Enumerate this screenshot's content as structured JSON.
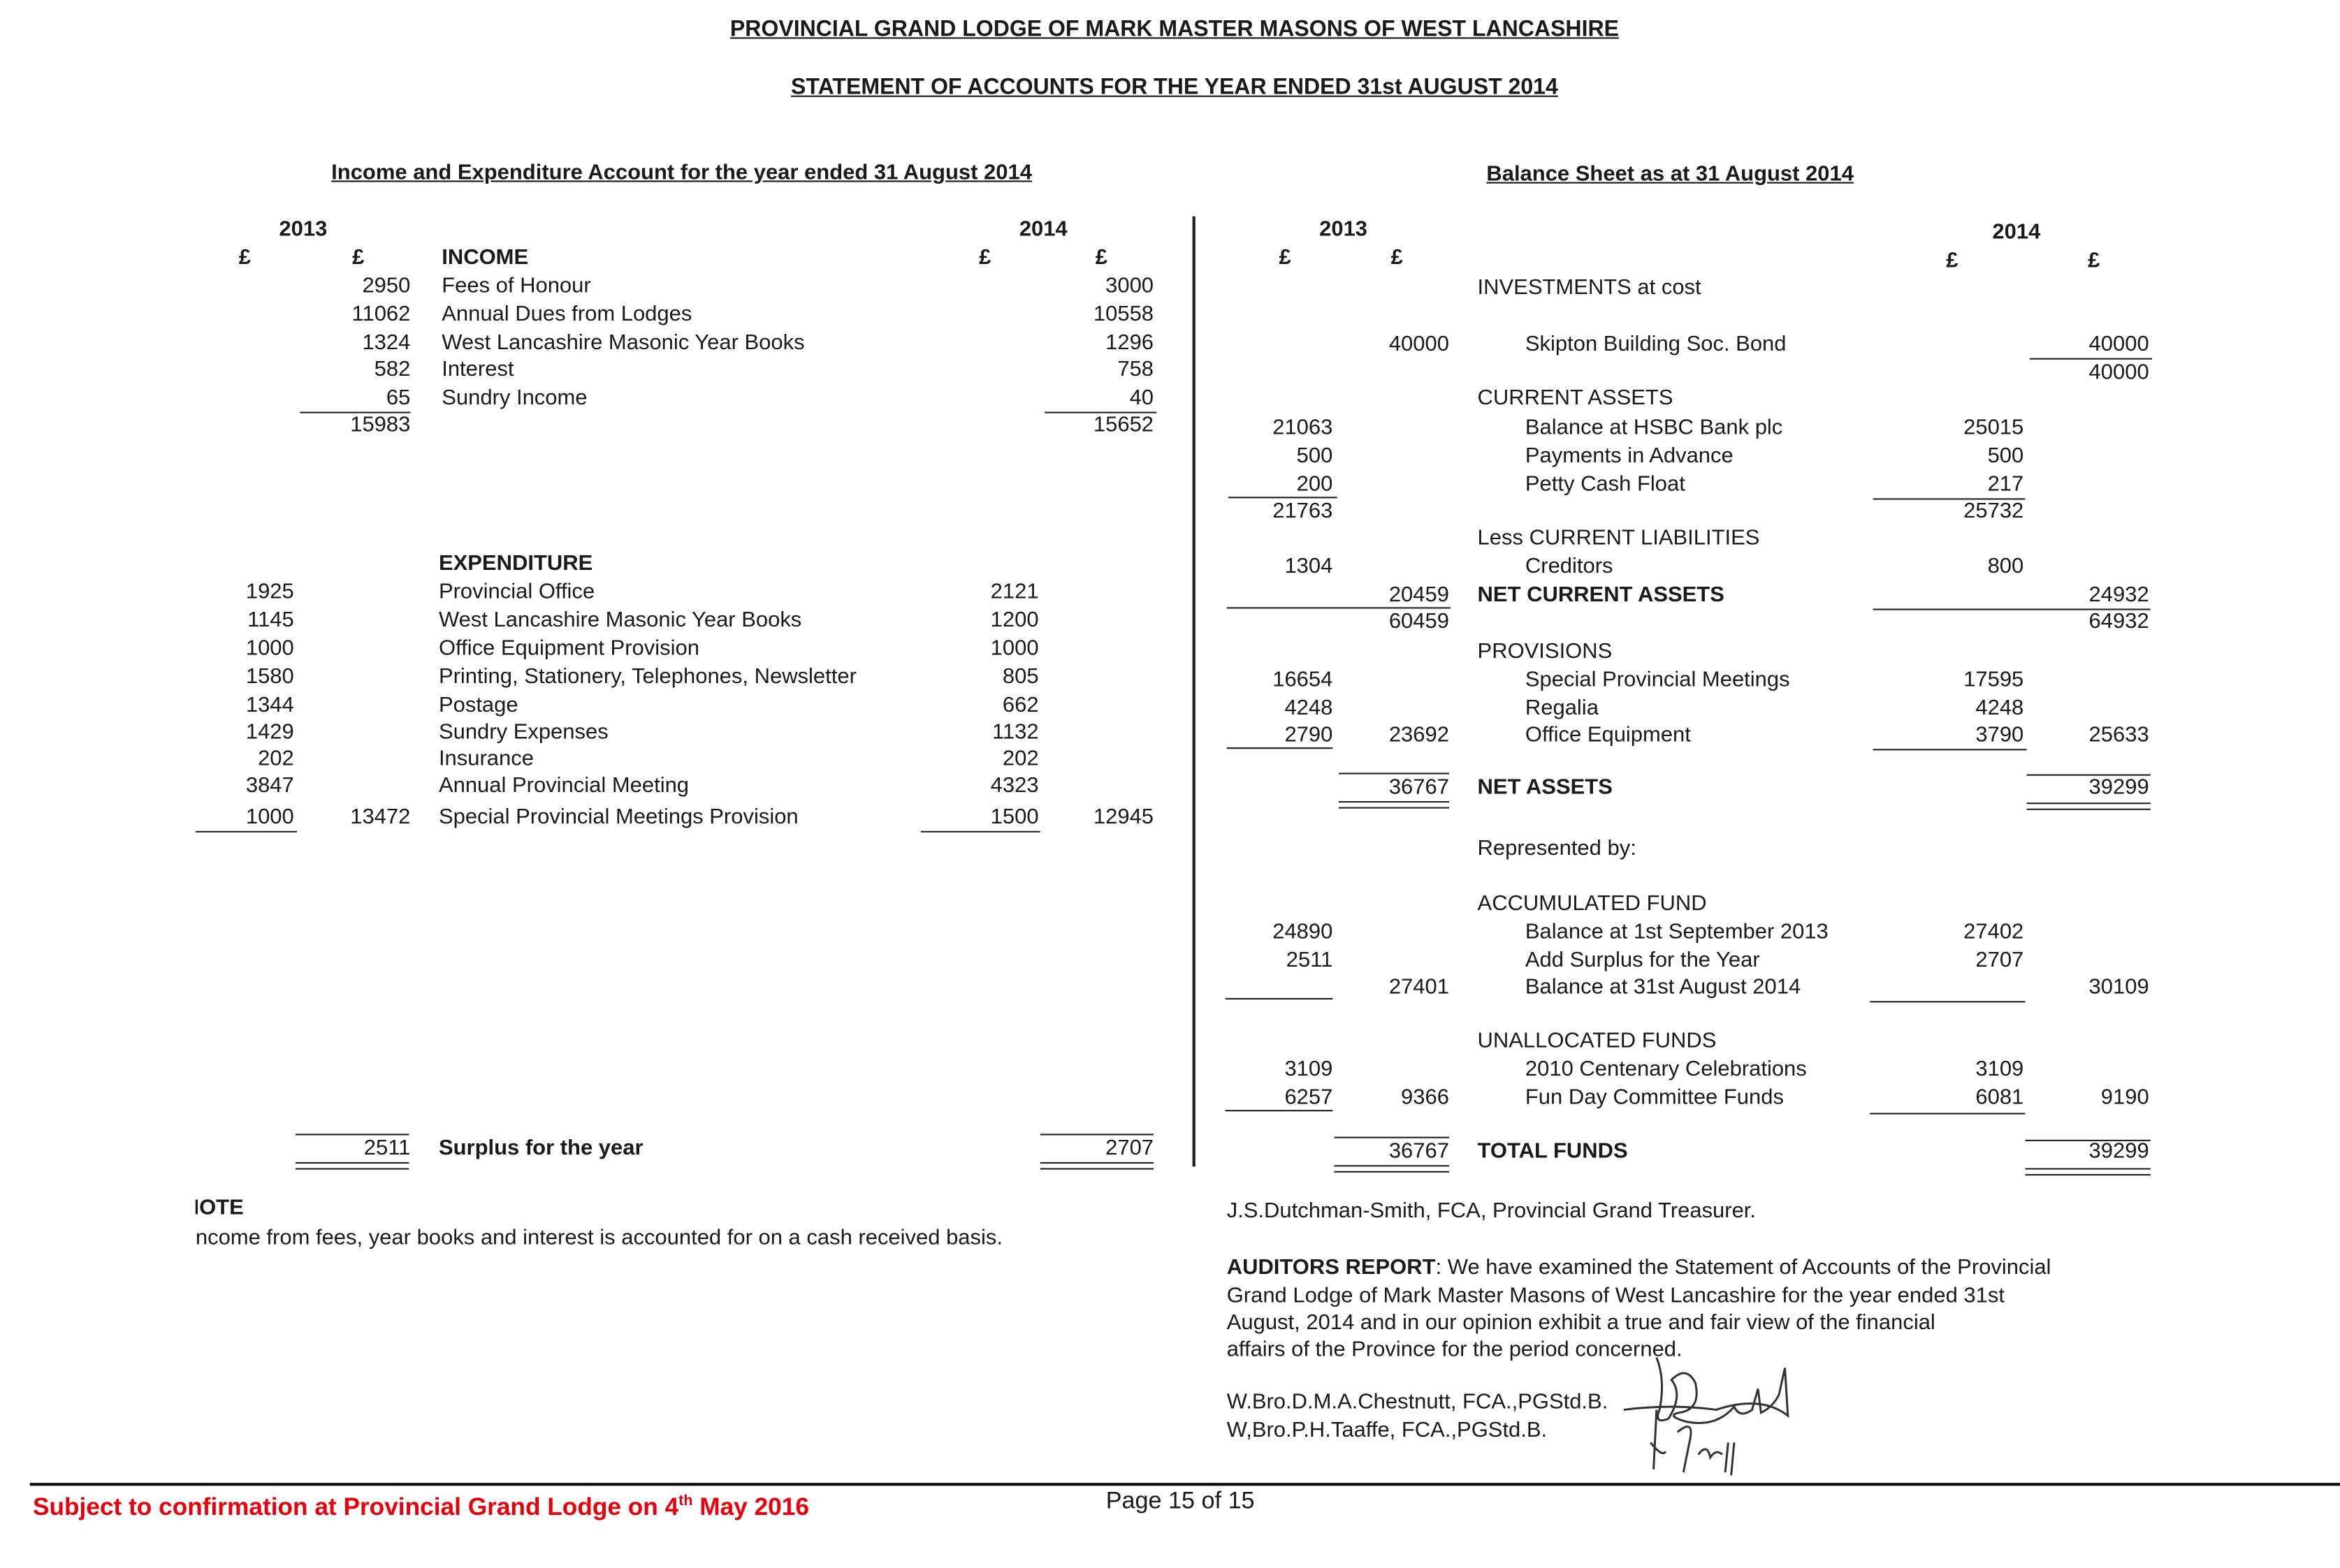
{
  "header": {
    "title": "PROVINCIAL GRAND LODGE OF MARK MASTER MASONS OF WEST LANCASHIRE",
    "subtitle": "STATEMENT OF ACCOUNTS FOR THE YEAR ENDED 31st AUGUST 2014"
  },
  "income_expenditure": {
    "title": "Income and Expenditure Account for the year ended 31 August 2014",
    "year_prev": "2013",
    "year_curr": "2014",
    "currency": "£",
    "income_heading": "INCOME",
    "rows": [
      {
        "label": "Fees of Honour",
        "b": "2950",
        "d": "3000"
      },
      {
        "label": "Annual Dues from Lodges",
        "b": "11062",
        "d": "10558"
      },
      {
        "label": "West Lancashire Masonic Year Books",
        "b": "1324",
        "d": "1296"
      },
      {
        "label": "Interest",
        "b": "582",
        "d": "758"
      },
      {
        "label": "Sundry Income",
        "b": "65",
        "d": "40"
      },
      {
        "b": "15983",
        "d": "15652"
      },
      {
        "label": "EXPENDITURE"
      },
      {
        "label": "Provincial Office",
        "a": "1925",
        "c": "2121"
      },
      {
        "label": "West Lancashire Masonic Year Books",
        "a": "1145",
        "c": "1200"
      },
      {
        "label": "Office Equipment Provision",
        "a": "1000",
        "c": "1000"
      },
      {
        "label": "Printing,  Stationery, Telephones, Newsletter",
        "a": "1580",
        "c": "805"
      },
      {
        "label": "Postage",
        "a": "1344",
        "c": "662"
      },
      {
        "label": "Sundry Expenses",
        "a": "1429",
        "c": "1132"
      },
      {
        "label": "Insurance",
        "a": "202",
        "c": "202"
      },
      {
        "label": "Annual Provincial Meeting",
        "a": "3847",
        "c": "4323"
      },
      {
        "label": "Special Provincial Meetings Provision",
        "a": "1000",
        "b": "13472",
        "c": "1500",
        "d": "12945"
      },
      {
        "label": "Surplus for the year",
        "b": "2511",
        "d": "2707"
      }
    ]
  },
  "balance_sheet": {
    "title": "Balance Sheet as at 31 August 2014",
    "year_prev": "2013",
    "year_curr": "2014",
    "currency": "£",
    "rows": [
      {
        "label": "INVESTMENTS at cost"
      },
      {
        "label": "Skipton Building Soc. Bond",
        "b": "40000",
        "d": "40000"
      },
      {
        "d": "40000"
      },
      {
        "label": "CURRENT ASSETS"
      },
      {
        "label": "Balance at HSBC Bank plc",
        "a": "21063",
        "c": "25015"
      },
      {
        "label": "Payments in Advance",
        "a": "500",
        "c": "500"
      },
      {
        "label": "Petty Cash Float",
        "a": "200",
        "c": "217"
      },
      {
        "a": "21763",
        "c": "25732"
      },
      {
        "label": "Less CURRENT LIABILITIES"
      },
      {
        "label": "Creditors",
        "a": "1304",
        "c": "800"
      },
      {
        "label": "NET CURRENT ASSETS",
        "b": "20459",
        "d": "24932"
      },
      {
        "b": "60459",
        "d": "64932"
      },
      {
        "label": "PROVISIONS"
      },
      {
        "label": "Special Provincial Meetings",
        "a": "16654",
        "c": "17595"
      },
      {
        "label": "Regalia",
        "a": "4248",
        "c": "4248"
      },
      {
        "label": "Office Equipment",
        "a": "2790",
        "b": "23692",
        "c": "3790",
        "d": "25633"
      },
      {
        "label": "NET ASSETS",
        "b": "36767",
        "d": "39299"
      },
      {
        "label": "Represented by:"
      },
      {
        "label": "ACCUMULATED FUND"
      },
      {
        "label": "Balance at 1st September 2013",
        "a": "24890",
        "c": "27402"
      },
      {
        "label": "Add Surplus for the Year",
        "a": "2511",
        "c": "2707"
      },
      {
        "label": "Balance at 31st August 2014",
        "b": "27401",
        "d": "30109"
      },
      {
        "label": "UNALLOCATED FUNDS"
      },
      {
        "label": "2010 Centenary Celebrations",
        "a": "3109",
        "c": "3109"
      },
      {
        "label": "Fun Day Committee Funds",
        "a": "6257",
        "b": "9366",
        "c": "6081",
        "d": "9190"
      },
      {
        "label": "TOTAL FUNDS",
        "b": "36767",
        "d": "39299"
      }
    ]
  },
  "note": {
    "heading": "NOTE",
    "text": "Income from fees, year books and interest is accounted for on a cash received basis."
  },
  "treasurer": "J.S.Dutchman-Smith, FCA,  Provincial Grand Treasurer.",
  "auditors": {
    "heading": "AUDITORS REPORT",
    "lines": [
      ": We have examined the Statement of Accounts of the Provincial",
      "Grand Lodge of Mark Master Masons of West Lancashire for the year ended 31st",
      "August, 2014 and in our opinion exhibit a true and fair view of the financial",
      "affairs of the Province for the period concerned."
    ],
    "signatory_1": "W.Bro.D.M.A.Chestnutt, FCA.,PGStd.B.",
    "signatory_2": "W,Bro.P.H.Taaffe, FCA.,PGStd.B."
  },
  "footer": {
    "confirmation_pre": "Subject to confirmation at Provincial Grand Lodge on 4",
    "confirmation_sup": "th",
    "confirmation_post": " May 2016",
    "page": "Page 15 of 15",
    "confirmation_color": "#e8000b"
  }
}
